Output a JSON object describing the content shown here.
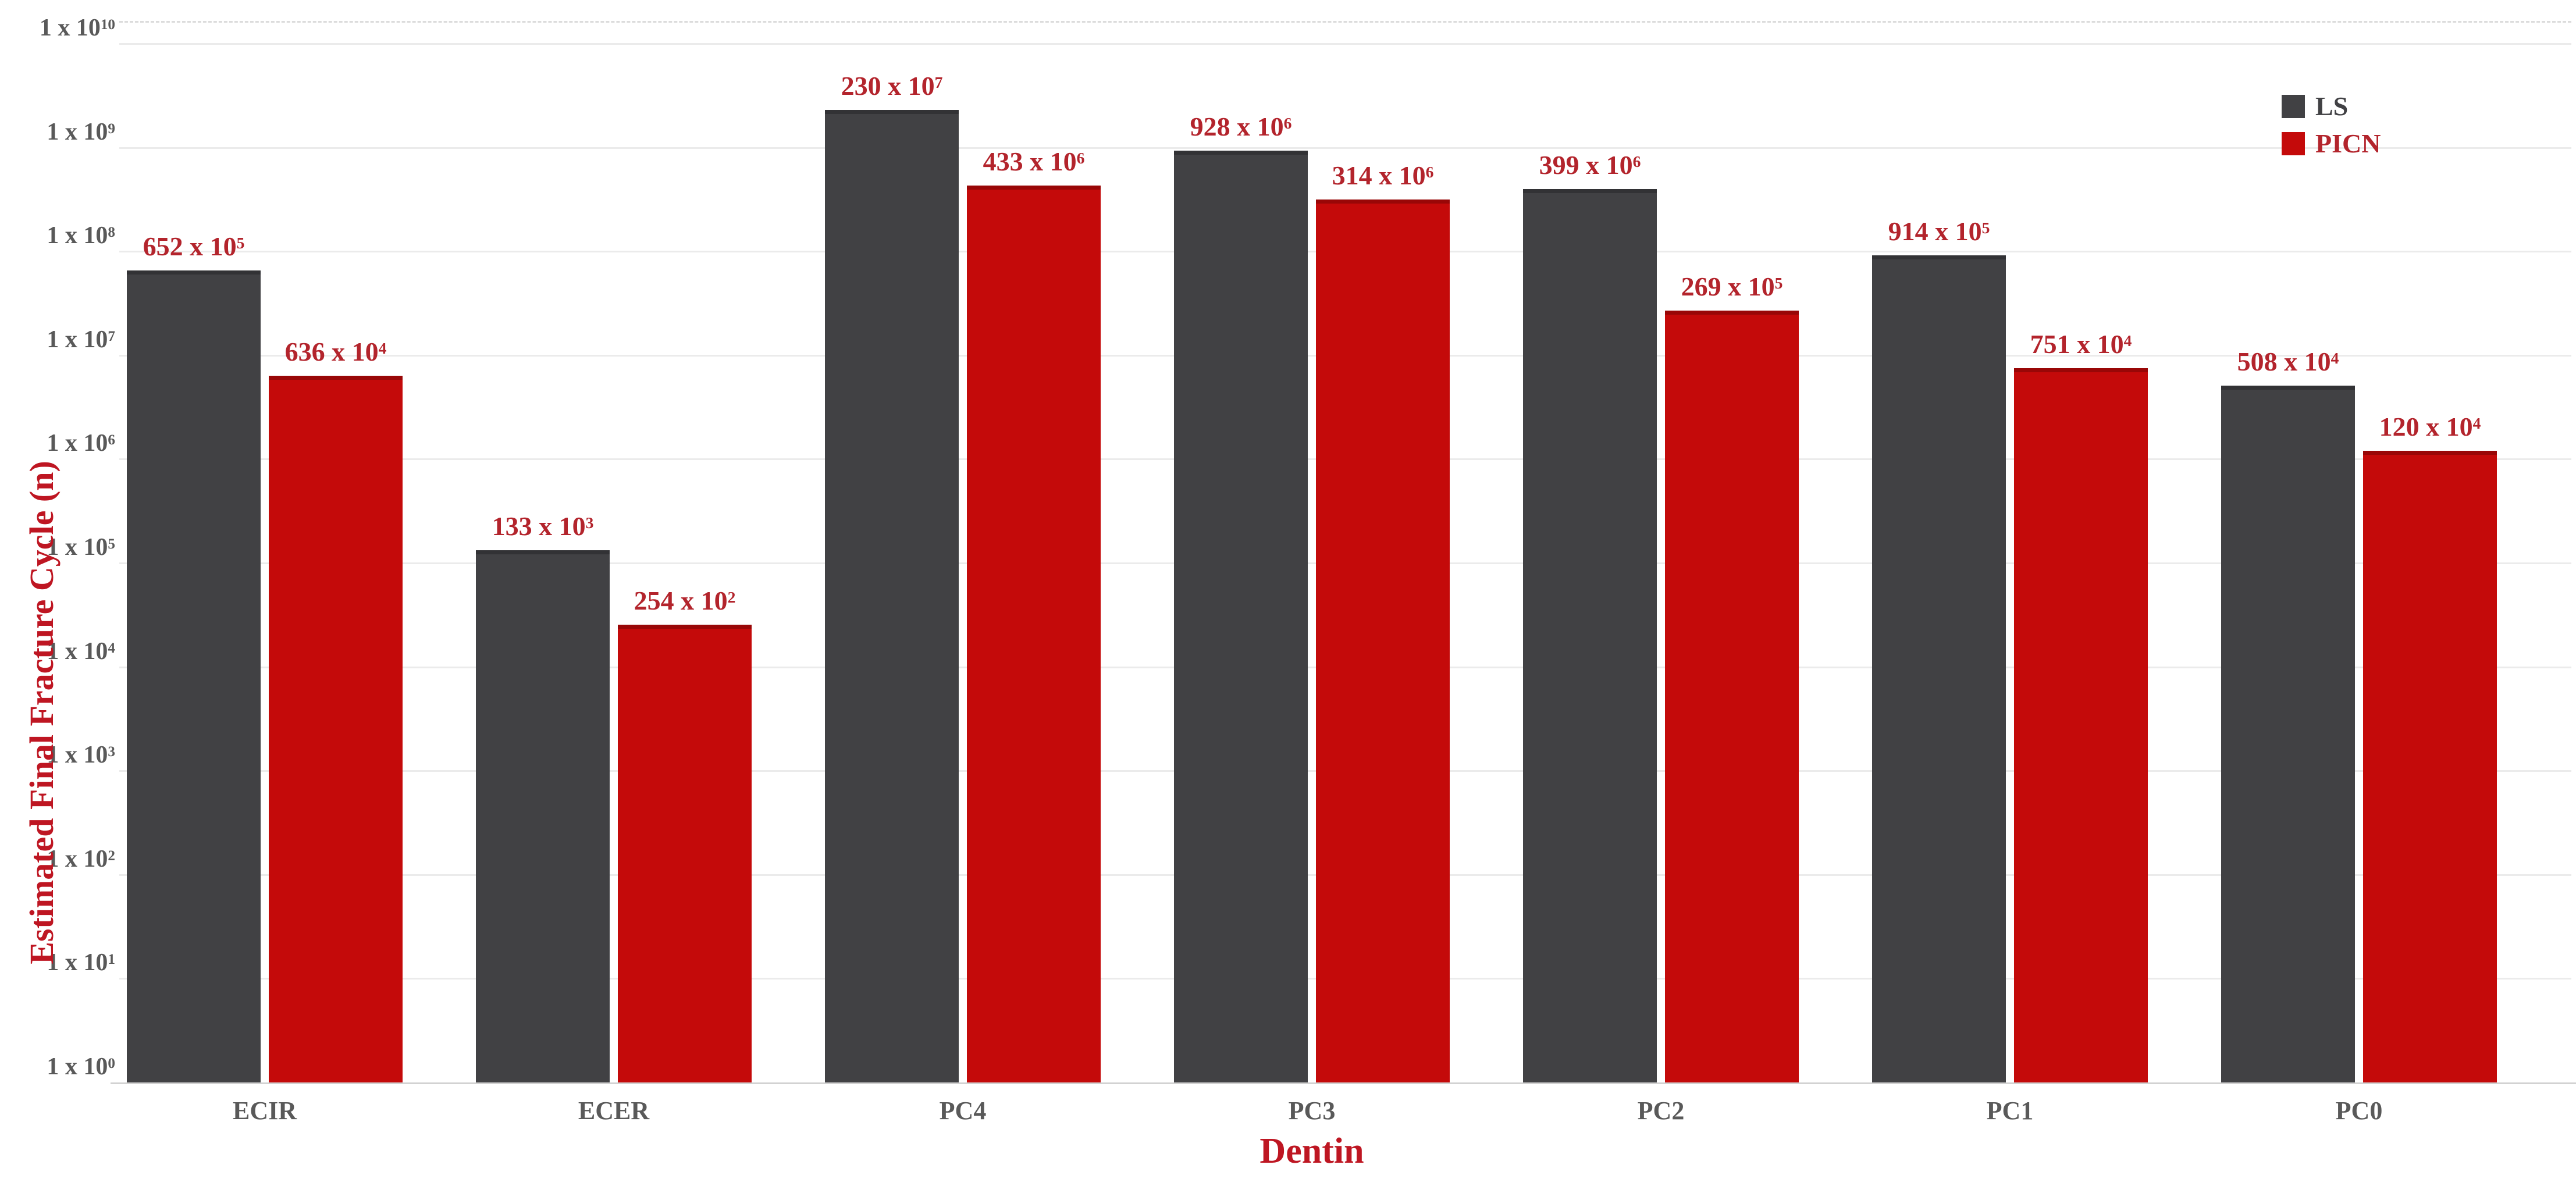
{
  "chart_data": {
    "type": "bar",
    "title": "",
    "xlabel": "Dentin",
    "ylabel": "Estimated Final Fracture Cycle (n)",
    "y_scale": "log",
    "ylim": [
      1,
      10000000000
    ],
    "y_tick_exponents": [
      10,
      9,
      8,
      7,
      6,
      5,
      4,
      3,
      2,
      1,
      0
    ],
    "y_tick_mantissa": "1 x 10",
    "grid": true,
    "legend_position": "top-right",
    "categories": [
      "ECIR",
      "ECER",
      "PC4",
      "PC3",
      "PC2",
      "PC1",
      "PC0"
    ],
    "series": [
      {
        "name": "LS",
        "color": "#414144",
        "values": [
          65200000,
          133000,
          2300000000,
          928000000,
          399000000,
          91400000,
          5080000
        ],
        "value_labels": [
          {
            "mantissa": "652",
            "exponent": "5"
          },
          {
            "mantissa": "133",
            "exponent": "3"
          },
          {
            "mantissa": "230",
            "exponent": "7"
          },
          {
            "mantissa": "928",
            "exponent": "6"
          },
          {
            "mantissa": "399",
            "exponent": "6"
          },
          {
            "mantissa": "914",
            "exponent": "5"
          },
          {
            "mantissa": "508",
            "exponent": "4"
          }
        ]
      },
      {
        "name": "PICN",
        "color": "#c40a0a",
        "values": [
          6360000,
          25400,
          433000000,
          314000000,
          26900000,
          7510000,
          1200000
        ],
        "value_labels": [
          {
            "mantissa": "636",
            "exponent": "4"
          },
          {
            "mantissa": "254",
            "exponent": "2"
          },
          {
            "mantissa": "433",
            "exponent": "6"
          },
          {
            "mantissa": "314",
            "exponent": "6"
          },
          {
            "mantissa": "269",
            "exponent": "5"
          },
          {
            "mantissa": "751",
            "exponent": "4"
          },
          {
            "mantissa": "120",
            "exponent": "4"
          }
        ]
      }
    ]
  },
  "colors": {
    "value_label_text": "#b3242c",
    "axis_title_text": "#be1622",
    "tick_label_text": "#595959",
    "gridline": "#ebebeb",
    "axis_line": "#d2d2d2",
    "legend_ls_text": "#414144",
    "legend_picn_text": "#b3242c"
  }
}
